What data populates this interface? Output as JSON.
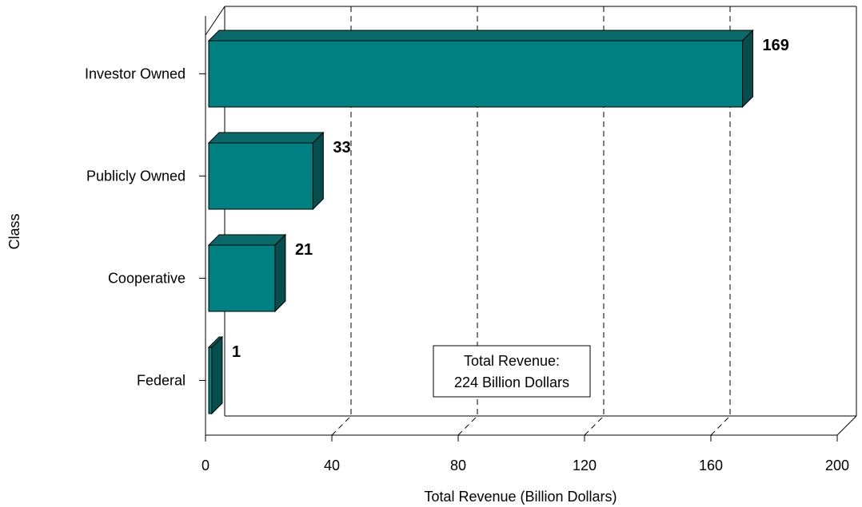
{
  "chart_data": {
    "type": "bar",
    "orientation": "horizontal",
    "style": "3d",
    "categories": [
      "Investor Owned",
      "Publicly Owned",
      "Cooperative",
      "Federal"
    ],
    "values": [
      169,
      33,
      21,
      1
    ],
    "xlabel": "Total Revenue (Billion Dollars)",
    "ylabel": "Class",
    "xlim": [
      0,
      200
    ],
    "x_ticks": [
      "0",
      "40",
      "80",
      "120",
      "160",
      "200"
    ],
    "grid": "vertical dashed",
    "annotation": [
      "Total Revenue:",
      "224 Billion Dollars"
    ],
    "colors": {
      "bar_front": "#008080",
      "bar_top": "#0a6a6a",
      "bar_side": "#064d4d"
    }
  }
}
